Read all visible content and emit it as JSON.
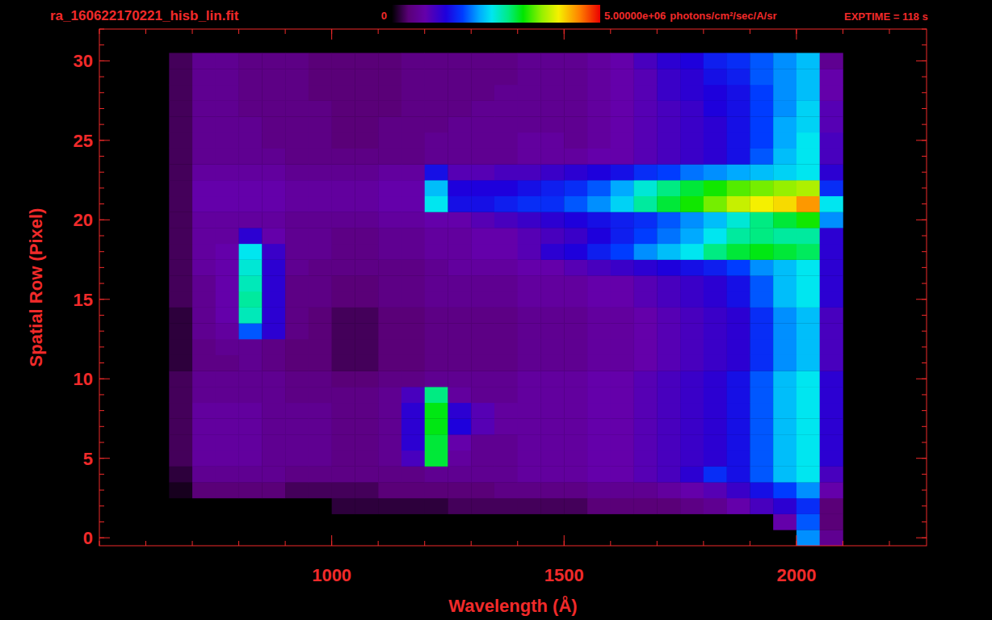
{
  "chart_data": {
    "type": "heatmap",
    "title": "ra_160622170221_hisb_lin.fit",
    "annotations": [
      "EXPTIME = 118 s"
    ],
    "x_label": "Wavelength (Å)",
    "y_label": "Spatial Row (Pixel)",
    "xlim": [
      500,
      2280
    ],
    "ylim": [
      -0.5,
      32
    ],
    "xticks": [
      1000,
      1500,
      2000
    ],
    "yticks": [
      0,
      5,
      10,
      15,
      20,
      25,
      30
    ],
    "x_edges": [
      650,
      700,
      750,
      800,
      850,
      900,
      950,
      1000,
      1050,
      1100,
      1150,
      1200,
      1250,
      1300,
      1350,
      1400,
      1450,
      1500,
      1550,
      1600,
      1650,
      1700,
      1750,
      1800,
      1850,
      1900,
      1950,
      2000,
      2050,
      2100
    ],
    "y": [
      0,
      1,
      2,
      3,
      4,
      5,
      6,
      7,
      8,
      9,
      10,
      11,
      12,
      13,
      14,
      15,
      16,
      17,
      18,
      19,
      20,
      21,
      22,
      23,
      24,
      25,
      26,
      27,
      28,
      29,
      30
    ],
    "colorbar": {
      "range": [
        0,
        5000000
      ],
      "ticks": [
        0,
        {
          "value": 5000000,
          "label": "5.00000e+06"
        }
      ],
      "label": "photons/cm²/sec/A/sr"
    },
    "cells": [
      [
        0,
        0,
        0,
        0,
        0,
        0,
        0,
        0,
        0,
        0,
        0,
        0,
        0,
        0,
        0,
        0,
        0,
        0,
        0,
        0,
        0,
        0,
        0,
        0,
        0,
        0,
        0,
        2000000.0,
        600000.0
      ],
      [
        0,
        0,
        0,
        0,
        0,
        0,
        0,
        0,
        0,
        0,
        0,
        0,
        0,
        0,
        0,
        0,
        0,
        0,
        0,
        0,
        0,
        0,
        0,
        0,
        0,
        0,
        800000.0,
        1800000.0,
        400000.0
      ],
      [
        0,
        0,
        0,
        0,
        0,
        0,
        0,
        200000.0,
        200000.0,
        200000.0,
        200000.0,
        200000.0,
        300000.0,
        300000.0,
        300000.0,
        300000.0,
        300000.0,
        300000.0,
        400000.0,
        400000.0,
        400000.0,
        400000.0,
        500000.0,
        600000.0,
        800000.0,
        1000000.0,
        1200000.0,
        1600000.0,
        400000.0
      ],
      [
        100000.0,
        400000.0,
        400000.0,
        400000.0,
        400000.0,
        300000.0,
        300000.0,
        300000.0,
        300000.0,
        400000.0,
        400000.0,
        400000.0,
        400000.0,
        400000.0,
        500000.0,
        500000.0,
        500000.0,
        500000.0,
        600000.0,
        600000.0,
        600000.0,
        700000.0,
        800000.0,
        900000.0,
        1100000.0,
        1400000.0,
        1700000.0,
        2000000.0,
        800000.0
      ],
      [
        200000.0,
        600000.0,
        600000.0,
        600000.0,
        600000.0,
        500000.0,
        500000.0,
        500000.0,
        500000.0,
        500000.0,
        500000.0,
        600000.0,
        600000.0,
        600000.0,
        600000.0,
        700000.0,
        700000.0,
        700000.0,
        800000.0,
        800000.0,
        900000.0,
        1000000.0,
        1200000.0,
        1600000.0,
        1400000.0,
        1800000.0,
        2200000.0,
        2400000.0,
        1000000.0
      ],
      [
        300000.0,
        700000.0,
        700000.0,
        700000.0,
        600000.0,
        600000.0,
        600000.0,
        500000.0,
        500000.0,
        600000.0,
        1000000.0,
        3000000.0,
        700000.0,
        600000.0,
        600000.0,
        700000.0,
        700000.0,
        700000.0,
        800000.0,
        800000.0,
        900000.0,
        1000000.0,
        1100000.0,
        1200000.0,
        1400000.0,
        1800000.0,
        2200000.0,
        2400000.0,
        1200000.0
      ],
      [
        300000.0,
        700000.0,
        700000.0,
        700000.0,
        600000.0,
        600000.0,
        600000.0,
        500000.0,
        500000.0,
        600000.0,
        1200000.0,
        3000000.0,
        800000.0,
        600000.0,
        600000.0,
        700000.0,
        700000.0,
        700000.0,
        800000.0,
        800000.0,
        900000.0,
        1000000.0,
        1100000.0,
        1200000.0,
        1400000.0,
        1800000.0,
        2200000.0,
        2400000.0,
        1200000.0
      ],
      [
        300000.0,
        700000.0,
        700000.0,
        700000.0,
        600000.0,
        600000.0,
        600000.0,
        500000.0,
        500000.0,
        600000.0,
        1200000.0,
        3100000.0,
        1300000.0,
        900000.0,
        700000.0,
        700000.0,
        700000.0,
        700000.0,
        800000.0,
        800000.0,
        900000.0,
        1000000.0,
        1100000.0,
        1200000.0,
        1400000.0,
        1800000.0,
        2200000.0,
        2400000.0,
        1200000.0
      ],
      [
        300000.0,
        700000.0,
        700000.0,
        700000.0,
        600000.0,
        600000.0,
        600000.0,
        500000.0,
        500000.0,
        600000.0,
        1200000.0,
        3100000.0,
        1200000.0,
        900000.0,
        700000.0,
        700000.0,
        700000.0,
        700000.0,
        800000.0,
        800000.0,
        900000.0,
        1000000.0,
        1100000.0,
        1200000.0,
        1400000.0,
        1800000.0,
        2200000.0,
        2400000.0,
        1200000.0
      ],
      [
        300000.0,
        600000.0,
        600000.0,
        600000.0,
        600000.0,
        500000.0,
        500000.0,
        500000.0,
        500000.0,
        600000.0,
        1000000.0,
        2800000.0,
        700000.0,
        600000.0,
        600000.0,
        700000.0,
        700000.0,
        700000.0,
        800000.0,
        800000.0,
        900000.0,
        1000000.0,
        1100000.0,
        1200000.0,
        1400000.0,
        1800000.0,
        2200000.0,
        2400000.0,
        1200000.0
      ],
      [
        300000.0,
        600000.0,
        600000.0,
        600000.0,
        600000.0,
        500000.0,
        500000.0,
        400000.0,
        400000.0,
        500000.0,
        500000.0,
        600000.0,
        600000.0,
        600000.0,
        600000.0,
        700000.0,
        700000.0,
        700000.0,
        800000.0,
        800000.0,
        900000.0,
        1000000.0,
        1100000.0,
        1200000.0,
        1400000.0,
        1800000.0,
        2200000.0,
        2400000.0,
        1200000.0
      ],
      [
        200000.0,
        500000.0,
        500000.0,
        600000.0,
        500000.0,
        400000.0,
        400000.0,
        300000.0,
        300000.0,
        400000.0,
        400000.0,
        500000.0,
        500000.0,
        500000.0,
        500000.0,
        600000.0,
        600000.0,
        600000.0,
        700000.0,
        700000.0,
        800000.0,
        900000.0,
        1000000.0,
        1100000.0,
        1200000.0,
        1600000.0,
        2000000.0,
        2200000.0,
        1000000.0
      ],
      [
        200000.0,
        500000.0,
        600000.0,
        600000.0,
        500000.0,
        400000.0,
        400000.0,
        300000.0,
        300000.0,
        400000.0,
        400000.0,
        500000.0,
        500000.0,
        500000.0,
        500000.0,
        600000.0,
        600000.0,
        600000.0,
        700000.0,
        700000.0,
        800000.0,
        900000.0,
        1000000.0,
        1100000.0,
        1200000.0,
        1600000.0,
        2000000.0,
        2200000.0,
        1000000.0
      ],
      [
        200000.0,
        600000.0,
        700000.0,
        1800000.0,
        1200000.0,
        500000.0,
        400000.0,
        300000.0,
        300000.0,
        400000.0,
        400000.0,
        500000.0,
        500000.0,
        500000.0,
        500000.0,
        600000.0,
        600000.0,
        600000.0,
        700000.0,
        700000.0,
        800000.0,
        900000.0,
        1000000.0,
        1100000.0,
        1200000.0,
        1600000.0,
        2000000.0,
        2200000.0,
        1000000.0
      ],
      [
        200000.0,
        600000.0,
        800000.0,
        2600000.0,
        1200000.0,
        500000.0,
        400000.0,
        300000.0,
        300000.0,
        400000.0,
        400000.0,
        500000.0,
        500000.0,
        500000.0,
        500000.0,
        600000.0,
        600000.0,
        600000.0,
        700000.0,
        700000.0,
        800000.0,
        900000.0,
        1000000.0,
        1100000.0,
        1200000.0,
        1600000.0,
        2000000.0,
        2200000.0,
        1000000.0
      ],
      [
        300000.0,
        600000.0,
        800000.0,
        2700000.0,
        1200000.0,
        500000.0,
        500000.0,
        400000.0,
        400000.0,
        500000.0,
        500000.0,
        600000.0,
        600000.0,
        600000.0,
        600000.0,
        700000.0,
        700000.0,
        700000.0,
        800000.0,
        800000.0,
        900000.0,
        1000000.0,
        1100000.0,
        1200000.0,
        1400000.0,
        1800000.0,
        2200000.0,
        2400000.0,
        1200000.0
      ],
      [
        300000.0,
        600000.0,
        800000.0,
        2600000.0,
        1200000.0,
        500000.0,
        500000.0,
        400000.0,
        400000.0,
        500000.0,
        500000.0,
        600000.0,
        600000.0,
        600000.0,
        600000.0,
        700000.0,
        700000.0,
        700000.0,
        800000.0,
        800000.0,
        900000.0,
        1000000.0,
        1100000.0,
        1200000.0,
        1400000.0,
        1800000.0,
        2200000.0,
        2400000.0,
        1200000.0
      ],
      [
        300000.0,
        700000.0,
        800000.0,
        2500000.0,
        1200000.0,
        600000.0,
        500000.0,
        500000.0,
        500000.0,
        500000.0,
        500000.0,
        600000.0,
        700000.0,
        700000.0,
        700000.0,
        800000.0,
        800000.0,
        900000.0,
        1000000.0,
        1100000.0,
        1200000.0,
        1300000.0,
        1400000.0,
        1500000.0,
        1700000.0,
        2000000.0,
        2200000.0,
        2400000.0,
        1200000.0
      ],
      [
        300000.0,
        700000.0,
        800000.0,
        2400000.0,
        1100000.0,
        600000.0,
        600000.0,
        500000.0,
        500000.0,
        600000.0,
        600000.0,
        700000.0,
        700000.0,
        800000.0,
        800000.0,
        900000.0,
        1200000.0,
        1300000.0,
        1500000.0,
        1700000.0,
        2000000.0,
        2200000.0,
        2400000.0,
        2800000.0,
        3000000.0,
        3100000.0,
        3000000.0,
        2900000.0,
        1200000.0
      ],
      [
        300000.0,
        700000.0,
        700000.0,
        1200000.0,
        800000.0,
        600000.0,
        600000.0,
        500000.0,
        500000.0,
        600000.0,
        600000.0,
        700000.0,
        700000.0,
        800000.0,
        800000.0,
        900000.0,
        1000000.0,
        1100000.0,
        1300000.0,
        1500000.0,
        1700000.0,
        1900000.0,
        2100000.0,
        2400000.0,
        2700000.0,
        2800000.0,
        2700000.0,
        2700000.0,
        1200000.0
      ],
      [
        300000.0,
        700000.0,
        700000.0,
        700000.0,
        700000.0,
        600000.0,
        600000.0,
        600000.0,
        600000.0,
        700000.0,
        700000.0,
        800000.0,
        800000.0,
        900000.0,
        1000000.0,
        1100000.0,
        1200000.0,
        1300000.0,
        1400000.0,
        1500000.0,
        1600000.0,
        1800000.0,
        2000000.0,
        2200000.0,
        2500000.0,
        2800000.0,
        3000000.0,
        3200000.0,
        2000000.0
      ],
      [
        300000.0,
        800000.0,
        800000.0,
        800000.0,
        800000.0,
        700000.0,
        700000.0,
        700000.0,
        700000.0,
        800000.0,
        800000.0,
        2400000.0,
        1400000.0,
        1400000.0,
        1500000.0,
        1600000.0,
        1600000.0,
        1800000.0,
        2000000.0,
        2300000.0,
        2700000.0,
        3000000.0,
        3200000.0,
        3500000.0,
        3800000.0,
        4000000.0,
        4100000.0,
        4400000.0,
        2400000.0
      ],
      [
        300000.0,
        800000.0,
        800000.0,
        800000.0,
        800000.0,
        700000.0,
        700000.0,
        700000.0,
        700000.0,
        800000.0,
        800000.0,
        2200000.0,
        1300000.0,
        1300000.0,
        1300000.0,
        1400000.0,
        1500000.0,
        1600000.0,
        1800000.0,
        2100000.0,
        2500000.0,
        2800000.0,
        3000000.0,
        3200000.0,
        3400000.0,
        3500000.0,
        3600000.0,
        3700000.0,
        1600000.0
      ],
      [
        300000.0,
        700000.0,
        700000.0,
        700000.0,
        700000.0,
        600000.0,
        600000.0,
        600000.0,
        600000.0,
        700000.0,
        700000.0,
        1400000.0,
        900000.0,
        900000.0,
        1000000.0,
        1000000.0,
        1100000.0,
        1200000.0,
        1300000.0,
        1400000.0,
        1600000.0,
        1700000.0,
        1900000.0,
        2000000.0,
        2100000.0,
        2200000.0,
        2300000.0,
        2400000.0,
        1200000.0
      ],
      [
        300000.0,
        600000.0,
        600000.0,
        600000.0,
        600000.0,
        500000.0,
        500000.0,
        500000.0,
        500000.0,
        500000.0,
        500000.0,
        600000.0,
        600000.0,
        600000.0,
        600000.0,
        700000.0,
        700000.0,
        700000.0,
        800000.0,
        800000.0,
        900000.0,
        1000000.0,
        1100000.0,
        1200000.0,
        1400000.0,
        1800000.0,
        2200000.0,
        2400000.0,
        1000000.0
      ],
      [
        300000.0,
        600000.0,
        600000.0,
        600000.0,
        500000.0,
        500000.0,
        500000.0,
        400000.0,
        400000.0,
        500000.0,
        500000.0,
        600000.0,
        600000.0,
        600000.0,
        600000.0,
        700000.0,
        700000.0,
        600000.0,
        700000.0,
        800000.0,
        900000.0,
        1000000.0,
        1100000.0,
        1200000.0,
        1400000.0,
        1700000.0,
        2100000.0,
        2400000.0,
        1000000.0
      ],
      [
        300000.0,
        600000.0,
        600000.0,
        600000.0,
        500000.0,
        500000.0,
        500000.0,
        400000.0,
        400000.0,
        500000.0,
        500000.0,
        500000.0,
        600000.0,
        600000.0,
        600000.0,
        600000.0,
        600000.0,
        600000.0,
        700000.0,
        800000.0,
        900000.0,
        1000000.0,
        1100000.0,
        1200000.0,
        1400000.0,
        1700000.0,
        2100000.0,
        2300000.0,
        900000.0
      ],
      [
        300000.0,
        600000.0,
        600000.0,
        500000.0,
        500000.0,
        500000.0,
        500000.0,
        400000.0,
        400000.0,
        400000.0,
        500000.0,
        500000.0,
        500000.0,
        600000.0,
        600000.0,
        600000.0,
        600000.0,
        600000.0,
        700000.0,
        800000.0,
        900000.0,
        1000000.0,
        1100000.0,
        1300000.0,
        1400000.0,
        1700000.0,
        2000000.0,
        2300000.0,
        900000.0
      ],
      [
        300000.0,
        600000.0,
        600000.0,
        500000.0,
        500000.0,
        500000.0,
        400000.0,
        400000.0,
        400000.0,
        400000.0,
        500000.0,
        500000.0,
        500000.0,
        500000.0,
        600000.0,
        600000.0,
        600000.0,
        600000.0,
        700000.0,
        800000.0,
        900000.0,
        1100000.0,
        1200000.0,
        1300000.0,
        1400000.0,
        1700000.0,
        2000000.0,
        2200000.0,
        800000.0
      ],
      [
        300000.0,
        600000.0,
        600000.0,
        500000.0,
        500000.0,
        500000.0,
        400000.0,
        400000.0,
        400000.0,
        400000.0,
        500000.0,
        500000.0,
        500000.0,
        500000.0,
        500000.0,
        600000.0,
        600000.0,
        600000.0,
        700000.0,
        800000.0,
        900000.0,
        1100000.0,
        1200000.0,
        1400000.0,
        1500000.0,
        1800000.0,
        2000000.0,
        2200000.0,
        800000.0
      ],
      [
        300000.0,
        600000.0,
        600000.0,
        500000.0,
        500000.0,
        500000.0,
        400000.0,
        400000.0,
        400000.0,
        400000.0,
        500000.0,
        500000.0,
        500000.0,
        500000.0,
        500000.0,
        600000.0,
        600000.0,
        600000.0,
        700000.0,
        800000.0,
        1000000.0,
        1200000.0,
        1300000.0,
        1500000.0,
        1600000.0,
        1800000.0,
        2000000.0,
        2200000.0,
        600000.0
      ]
    ]
  }
}
